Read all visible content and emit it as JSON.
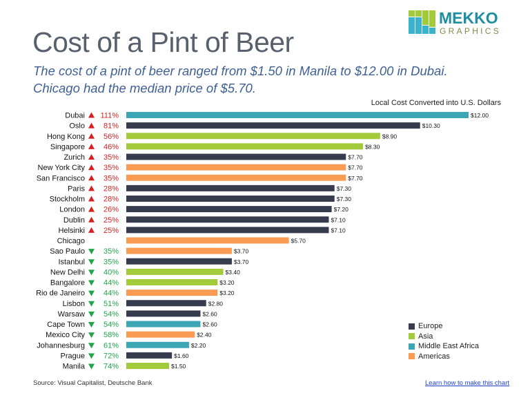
{
  "header": {
    "title": "Cost of a Pint of Beer",
    "subtitle_line1": "The cost of a pint of beer ranged from $1.50 in Manila to $12.00 in Dubai.",
    "subtitle_line2": "Chicago had the median price of $5.70.",
    "logo_text": "MEKKO GRAPHICS"
  },
  "footer": {
    "source": "Source: Visual Capitalist, Deutsche Bank",
    "link": "Learn how to make this chart"
  },
  "colors": {
    "Europe": "#363c4e",
    "Asia": "#a3ca3b",
    "Middle East Africa": "#3ba6b4",
    "Americas": "#f99b52",
    "up": "#d62020",
    "down": "#22a34a"
  },
  "chart_data": {
    "type": "bar",
    "orientation": "horizontal",
    "title": "Local Cost Converted into U.S. Dollars",
    "xlim": [
      0,
      12
    ],
    "legend": [
      "Europe",
      "Asia",
      "Middle East Africa",
      "Americas"
    ],
    "legend_position": "bottom-right",
    "grid": false,
    "rows": [
      {
        "city": "Dubai",
        "diff": "111%",
        "dir": "up",
        "value": 12.0,
        "label": "$12.00",
        "region": "Middle East Africa"
      },
      {
        "city": "Oslo",
        "diff": "81%",
        "dir": "up",
        "value": 10.3,
        "label": "$10.30",
        "region": "Europe"
      },
      {
        "city": "Hong Kong",
        "diff": "56%",
        "dir": "up",
        "value": 8.9,
        "label": "$8.90",
        "region": "Asia"
      },
      {
        "city": "Singapore",
        "diff": "46%",
        "dir": "up",
        "value": 8.3,
        "label": "$8.30",
        "region": "Asia"
      },
      {
        "city": "Zurich",
        "diff": "35%",
        "dir": "up",
        "value": 7.7,
        "label": "$7.70",
        "region": "Europe"
      },
      {
        "city": "New York City",
        "diff": "35%",
        "dir": "up",
        "value": 7.7,
        "label": "$7.70",
        "region": "Americas"
      },
      {
        "city": "San Francisco",
        "diff": "35%",
        "dir": "up",
        "value": 7.7,
        "label": "$7.70",
        "region": "Americas"
      },
      {
        "city": "Paris",
        "diff": "28%",
        "dir": "up",
        "value": 7.3,
        "label": "$7.30",
        "region": "Europe"
      },
      {
        "city": "Stockholm",
        "diff": "28%",
        "dir": "up",
        "value": 7.3,
        "label": "$7.30",
        "region": "Europe"
      },
      {
        "city": "London",
        "diff": "26%",
        "dir": "up",
        "value": 7.2,
        "label": "$7.20",
        "region": "Europe"
      },
      {
        "city": "Dublin",
        "diff": "25%",
        "dir": "up",
        "value": 7.1,
        "label": "$7.10",
        "region": "Europe"
      },
      {
        "city": "Helsinki",
        "diff": "25%",
        "dir": "up",
        "value": 7.1,
        "label": "$7.10",
        "region": "Europe"
      },
      {
        "city": "Chicago",
        "diff": "",
        "dir": "",
        "value": 5.7,
        "label": "$5.70",
        "region": "Americas"
      },
      {
        "city": "Sao Paulo",
        "diff": "35%",
        "dir": "down",
        "value": 3.7,
        "label": "$3.70",
        "region": "Americas"
      },
      {
        "city": "Istanbul",
        "diff": "35%",
        "dir": "down",
        "value": 3.7,
        "label": "$3.70",
        "region": "Europe"
      },
      {
        "city": "New Delhi",
        "diff": "40%",
        "dir": "down",
        "value": 3.4,
        "label": "$3.40",
        "region": "Asia"
      },
      {
        "city": "Bangalore",
        "diff": "44%",
        "dir": "down",
        "value": 3.2,
        "label": "$3.20",
        "region": "Asia"
      },
      {
        "city": "Rio de Janeiro",
        "diff": "44%",
        "dir": "down",
        "value": 3.2,
        "label": "$3.20",
        "region": "Americas"
      },
      {
        "city": "Lisbon",
        "diff": "51%",
        "dir": "down",
        "value": 2.8,
        "label": "$2.80",
        "region": "Europe"
      },
      {
        "city": "Warsaw",
        "diff": "54%",
        "dir": "down",
        "value": 2.6,
        "label": "$2.60",
        "region": "Europe"
      },
      {
        "city": "Cape Town",
        "diff": "54%",
        "dir": "down",
        "value": 2.6,
        "label": "$2.60",
        "region": "Middle East Africa"
      },
      {
        "city": "Mexico City",
        "diff": "58%",
        "dir": "down",
        "value": 2.4,
        "label": "$2.40",
        "region": "Americas"
      },
      {
        "city": "Johannesburg",
        "diff": "61%",
        "dir": "down",
        "value": 2.2,
        "label": "$2.20",
        "region": "Middle East Africa"
      },
      {
        "city": "Prague",
        "diff": "72%",
        "dir": "down",
        "value": 1.6,
        "label": "$1.60",
        "region": "Europe"
      },
      {
        "city": "Manila",
        "diff": "74%",
        "dir": "down",
        "value": 1.5,
        "label": "$1.50",
        "region": "Asia"
      }
    ]
  }
}
